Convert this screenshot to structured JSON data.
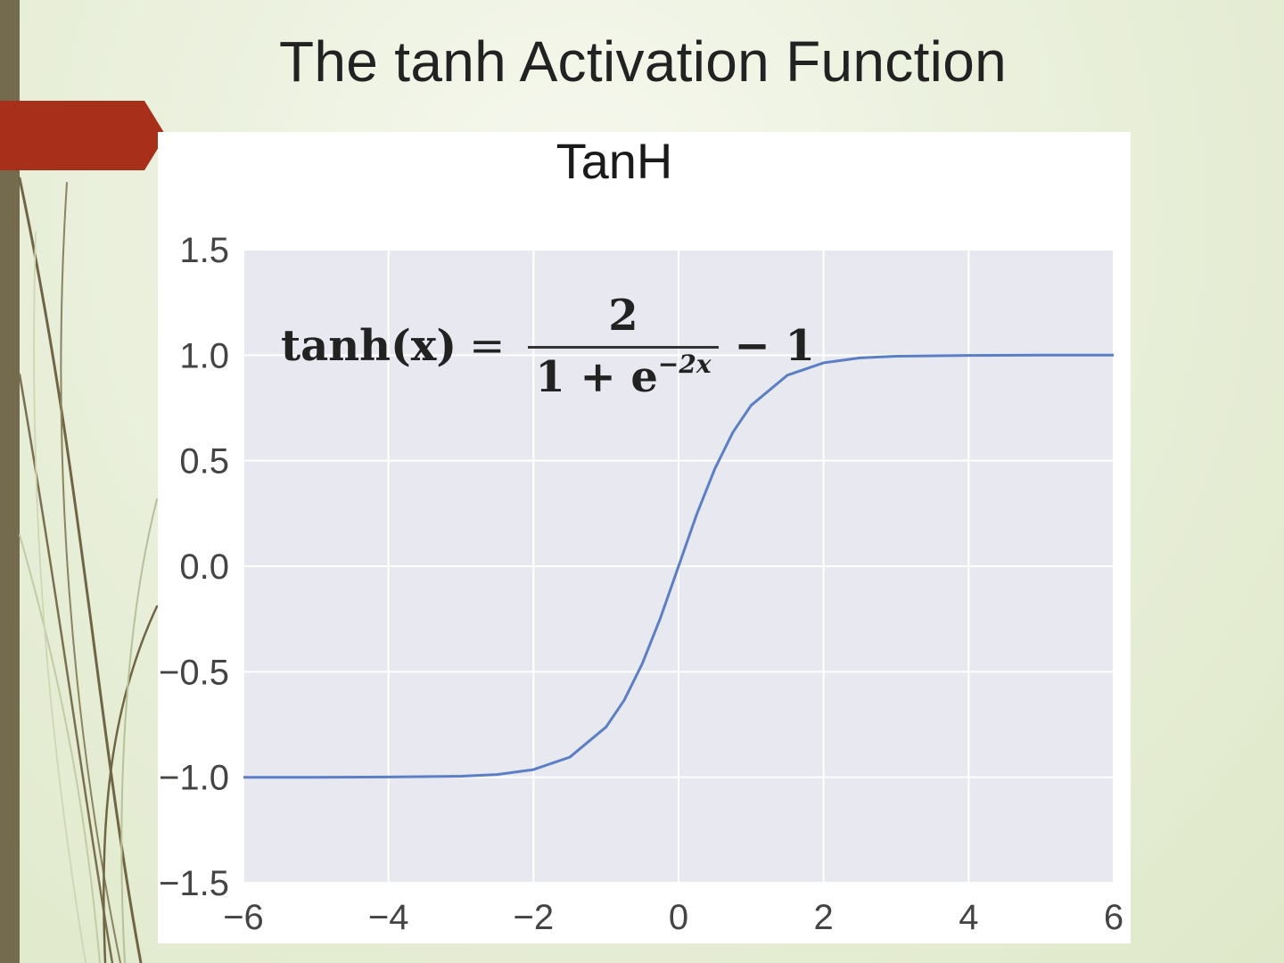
{
  "slide": {
    "title": "The tanh Activation Function",
    "accent_color": "#a8301a",
    "sidebar_color": "#746a4e"
  },
  "formula": {
    "lhs": "tanh(x)",
    "equals": "=",
    "numerator": "2",
    "denominator_base": "1 + e",
    "denominator_exponent": "−2x",
    "tail": "− 1"
  },
  "chart_data": {
    "type": "line",
    "title": "TanH",
    "xlabel": "",
    "ylabel": "",
    "xlim": [
      -6,
      6
    ],
    "ylim": [
      -1.5,
      1.5
    ],
    "x_ticks": [
      "−6",
      "−4",
      "−2",
      "0",
      "2",
      "4",
      "6"
    ],
    "y_ticks": [
      "1.5",
      "1.0",
      "0.5",
      "0.0",
      "−0.5",
      "−1.0",
      "−1.5"
    ],
    "grid": true,
    "plot_background": "#e8e8f0",
    "line_color": "#5b7fc7",
    "series": [
      {
        "x": [
          -6,
          -5,
          -4,
          -3,
          -2.5,
          -2,
          -1.5,
          -1,
          -0.75,
          -0.5,
          -0.25,
          0,
          0.25,
          0.5,
          0.75,
          1,
          1.5,
          2,
          2.5,
          3,
          4,
          5,
          6
        ],
        "values": [
          -1.0,
          -1.0,
          -0.999,
          -0.995,
          -0.987,
          -0.964,
          -0.905,
          -0.762,
          -0.635,
          -0.462,
          -0.245,
          0.0,
          0.245,
          0.462,
          0.635,
          0.762,
          0.905,
          0.964,
          0.987,
          0.995,
          0.999,
          1.0,
          1.0
        ]
      }
    ]
  }
}
